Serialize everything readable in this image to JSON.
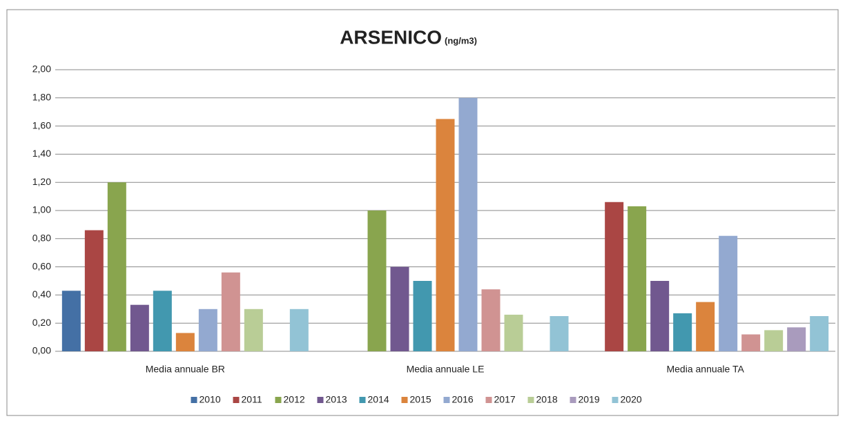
{
  "chart_data": {
    "type": "bar",
    "title": "ARSENICO",
    "subtitle": "(ng/m3)",
    "categories": [
      "Media annuale BR",
      "Media annuale LE",
      "Media annuale TA"
    ],
    "series": [
      {
        "name": "2010",
        "color": "#4470a5",
        "values": [
          0.43,
          null,
          null
        ]
      },
      {
        "name": "2011",
        "color": "#aa4644",
        "values": [
          0.86,
          null,
          1.06
        ]
      },
      {
        "name": "2012",
        "color": "#89a54e",
        "values": [
          1.2,
          1.0,
          1.03
        ]
      },
      {
        "name": "2013",
        "color": "#71588f",
        "values": [
          0.33,
          0.6,
          0.5
        ]
      },
      {
        "name": "2014",
        "color": "#4298af",
        "values": [
          0.43,
          0.5,
          0.27
        ]
      },
      {
        "name": "2015",
        "color": "#db843d",
        "values": [
          0.13,
          1.65,
          0.35
        ]
      },
      {
        "name": "2016",
        "color": "#93a9d0",
        "values": [
          0.3,
          1.8,
          0.82
        ]
      },
      {
        "name": "2017",
        "color": "#d09392",
        "values": [
          0.56,
          0.44,
          0.12
        ]
      },
      {
        "name": "2018",
        "color": "#b9cd96",
        "values": [
          0.3,
          0.26,
          0.15
        ]
      },
      {
        "name": "2019",
        "color": "#a99bbd",
        "values": [
          null,
          null,
          0.17
        ]
      },
      {
        "name": "2020",
        "color": "#92c3d5",
        "values": [
          0.3,
          0.25,
          0.25
        ]
      }
    ],
    "ylim": [
      0,
      2
    ],
    "yticks": [
      {
        "value": 0,
        "label": "0,00"
      },
      {
        "value": 0.2,
        "label": "0,20"
      },
      {
        "value": 0.4,
        "label": "0,40"
      },
      {
        "value": 0.6,
        "label": "0,60"
      },
      {
        "value": 0.8,
        "label": "0,80"
      },
      {
        "value": 1.0,
        "label": "1,00"
      },
      {
        "value": 1.2,
        "label": "1,20"
      },
      {
        "value": 1.4,
        "label": "1,40"
      },
      {
        "value": 1.6,
        "label": "1,60"
      },
      {
        "value": 1.8,
        "label": "1,80"
      },
      {
        "value": 2.0,
        "label": "2,00"
      }
    ],
    "grid": true,
    "legend": "bottom"
  }
}
